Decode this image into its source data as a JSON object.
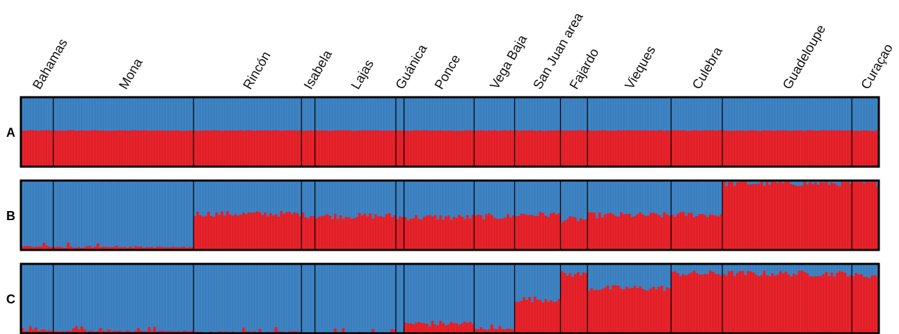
{
  "colors": {
    "cluster1": "#E31E26",
    "cluster2": "#3A7FBF",
    "frame": "#000000"
  },
  "chart_data": {
    "type": "bar",
    "stacked": true,
    "normalized": true,
    "ylim": [
      0,
      1
    ],
    "populations": [
      {
        "name": "Bahamas",
        "n": 12
      },
      {
        "name": "Mona",
        "n": 52
      },
      {
        "name": "Rincón",
        "n": 40
      },
      {
        "name": "Isabela",
        "n": 5
      },
      {
        "name": "Lajas",
        "n": 30
      },
      {
        "name": "Guánica",
        "n": 3
      },
      {
        "name": "Ponce",
        "n": 26
      },
      {
        "name": "Vega Baja",
        "n": 15
      },
      {
        "name": "San Juan area",
        "n": 17
      },
      {
        "name": "Fajardo",
        "n": 10
      },
      {
        "name": "Vieques",
        "n": 31
      },
      {
        "name": "Culebra",
        "n": 19
      },
      {
        "name": "Guadeloupe",
        "n": 48
      },
      {
        "name": "Curaçao",
        "n": 10
      }
    ],
    "panels": [
      {
        "label": "A",
        "red_means": [
          0.52,
          0.52,
          0.52,
          0.52,
          0.52,
          0.52,
          0.52,
          0.52,
          0.52,
          0.52,
          0.52,
          0.52,
          0.52,
          0.52
        ]
      },
      {
        "label": "B",
        "red_means": [
          0.05,
          0.04,
          0.52,
          0.5,
          0.49,
          0.47,
          0.47,
          0.48,
          0.51,
          0.44,
          0.5,
          0.51,
          0.96,
          0.96
        ]
      },
      {
        "label": "C",
        "red_means": [
          0.04,
          0.03,
          0.02,
          0.01,
          0.01,
          0.01,
          0.14,
          0.06,
          0.49,
          0.85,
          0.65,
          0.86,
          0.86,
          0.83
        ]
      }
    ]
  }
}
